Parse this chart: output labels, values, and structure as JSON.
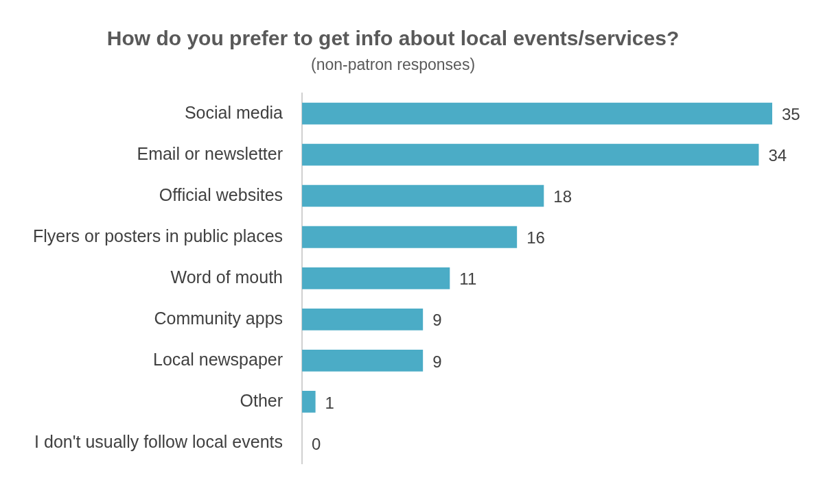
{
  "chart_data": {
    "type": "bar",
    "orientation": "horizontal",
    "title": "How do you prefer to get info about local events/services?",
    "subtitle": "(non-patron responses)",
    "categories": [
      "Social media",
      "Email or newsletter",
      "Official websites",
      "Flyers or posters in public places",
      "Word of mouth",
      "Community apps",
      "Local newspaper",
      "Other",
      "I don't usually follow local events"
    ],
    "values": [
      35,
      34,
      18,
      16,
      11,
      9,
      9,
      1,
      0
    ],
    "color": "#4bacc6",
    "data_labels": true,
    "tick_labels": "y",
    "legend": false
  }
}
